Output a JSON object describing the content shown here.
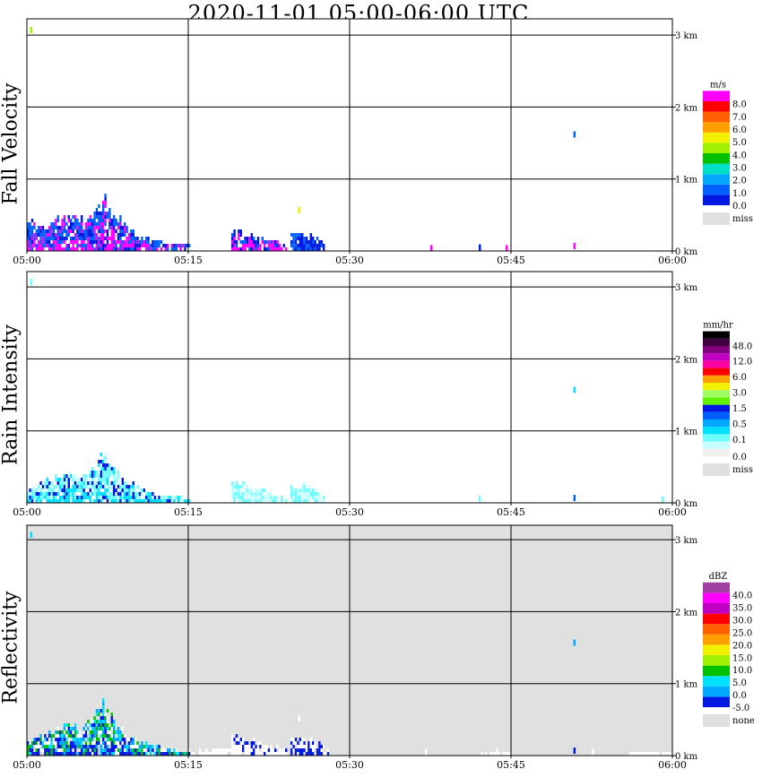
{
  "title": "2020-11-01   05:00-06:00 UTC",
  "time_ticks": [
    "05:00",
    "05:15",
    "05:30",
    "05:45",
    "06:00"
  ],
  "height_ticks": [
    "0 km",
    "1 km",
    "2 km",
    "3 km"
  ],
  "chart_data": [
    {
      "type": "heatmap",
      "ylabel": "Fall Velocity",
      "x_range_min": [
        0,
        60
      ],
      "y_range_km": [
        0,
        3.2
      ],
      "background": "#ffffff",
      "colorbar": {
        "unit": "m/s",
        "colors": [
          "#0018e0",
          "#0060ff",
          "#00a8ff",
          "#00e0c8",
          "#00c000",
          "#a0f000",
          "#f0f000",
          "#ffa000",
          "#ff6000",
          "#ff0000",
          "#ff00ff"
        ],
        "labels": [
          "0.0",
          "1.0",
          "2.0",
          "3.0",
          "4.0",
          "5.0",
          "6.0",
          "7.0",
          "8.0"
        ],
        "miss_label": "miss"
      },
      "echo_regions": [
        {
          "t": [
            0.0,
            15.0
          ],
          "profile": [
            [
              0,
              0.45
            ],
            [
              1,
              0.3
            ],
            [
              2,
              0.35
            ],
            [
              3,
              0.45
            ],
            [
              4,
              0.5
            ],
            [
              5,
              0.45
            ],
            [
              6,
              0.5
            ],
            [
              7,
              0.75
            ],
            [
              8,
              0.5
            ],
            [
              9,
              0.35
            ],
            [
              10,
              0.25
            ],
            [
              11,
              0.18
            ],
            [
              12,
              0.12
            ],
            [
              13,
              0.08
            ],
            [
              14,
              0.1
            ],
            [
              15,
              0.05
            ]
          ],
          "colors": [
            "#0018e0",
            "#0060ff",
            "#ff00ff",
            "#0060ff"
          ]
        },
        {
          "t": [
            19.0,
            24.0
          ],
          "profile": [
            [
              19,
              0.25
            ],
            [
              20,
              0.25
            ],
            [
              21,
              0.2
            ],
            [
              22,
              0.15
            ],
            [
              23,
              0.12
            ],
            [
              24,
              0.05
            ]
          ],
          "colors": [
            "#0018e0",
            "#0060ff",
            "#ff00ff"
          ]
        },
        {
          "t": [
            24.5,
            27.5
          ],
          "profile": [
            [
              24.5,
              0.2
            ],
            [
              25.5,
              0.25
            ],
            [
              26.5,
              0.18
            ],
            [
              27.5,
              0.1
            ]
          ],
          "colors": [
            "#0018e0",
            "#0060ff"
          ]
        }
      ],
      "specks": [
        {
          "t": 0.3,
          "h": 3.05,
          "c": "#a0f000"
        },
        {
          "t": 25.2,
          "h": 0.55,
          "c": "#f0f000"
        },
        {
          "t": 50.8,
          "h": 1.6,
          "c": "#0060ff"
        },
        {
          "t": 50.8,
          "h": 0.05,
          "c": "#ff00ff"
        },
        {
          "t": 42.0,
          "h": 0.03,
          "c": "#0018e0"
        },
        {
          "t": 37.5,
          "h": 0.02,
          "c": "#ff00ff"
        },
        {
          "t": 44.5,
          "h": 0.02,
          "c": "#ff00ff"
        }
      ]
    },
    {
      "type": "heatmap",
      "ylabel": "Rain Intensity",
      "x_range_min": [
        0,
        60
      ],
      "y_range_km": [
        0,
        3.2
      ],
      "background": "#ffffff",
      "colorbar": {
        "unit": "mm/hr",
        "colors": [
          "#f0f0f0",
          "#c8ffff",
          "#70ffff",
          "#00e0ff",
          "#00a8ff",
          "#0060ff",
          "#0018e0",
          "#60f000",
          "#a0ff60",
          "#f0f000",
          "#ffa000",
          "#ff0000",
          "#ff00a0",
          "#c000c0",
          "#800080",
          "#400040",
          "#000000"
        ],
        "labels": [
          "0.0",
          "0.1",
          "0.5",
          "1.5",
          "3.0",
          "6.0",
          "12.0",
          "48.0"
        ],
        "miss_label": "miss"
      },
      "echo_regions": [
        {
          "t": [
            0.0,
            15.0
          ],
          "profile": [
            [
              0,
              0.15
            ],
            [
              1,
              0.25
            ],
            [
              2,
              0.3
            ],
            [
              3,
              0.35
            ],
            [
              4,
              0.4
            ],
            [
              5,
              0.35
            ],
            [
              6,
              0.45
            ],
            [
              7,
              0.75
            ],
            [
              8,
              0.45
            ],
            [
              9,
              0.3
            ],
            [
              10,
              0.22
            ],
            [
              11,
              0.15
            ],
            [
              12,
              0.1
            ],
            [
              13,
              0.08
            ],
            [
              14,
              0.06
            ],
            [
              15,
              0.04
            ]
          ],
          "colors": [
            "#70ffff",
            "#c8ffff",
            "#00e0ff",
            "#70ffff",
            "#0018e0"
          ]
        },
        {
          "t": [
            19.0,
            24.0
          ],
          "profile": [
            [
              19,
              0.25
            ],
            [
              20,
              0.25
            ],
            [
              21,
              0.2
            ],
            [
              22,
              0.15
            ],
            [
              23,
              0.1
            ],
            [
              24,
              0.05
            ]
          ],
          "colors": [
            "#70ffff",
            "#c8ffff"
          ]
        },
        {
          "t": [
            24.5,
            27.5
          ],
          "profile": [
            [
              24.5,
              0.2
            ],
            [
              25.5,
              0.25
            ],
            [
              26.5,
              0.18
            ],
            [
              27.5,
              0.08
            ]
          ],
          "colors": [
            "#70ffff",
            "#c8ffff"
          ]
        }
      ],
      "specks": [
        {
          "t": 0.3,
          "h": 3.05,
          "c": "#70ffff"
        },
        {
          "t": 50.8,
          "h": 1.55,
          "c": "#00e0ff"
        },
        {
          "t": 50.8,
          "h": 0.05,
          "c": "#0060ff"
        },
        {
          "t": 42.0,
          "h": 0.04,
          "c": "#70ffff"
        },
        {
          "t": 59.0,
          "h": 0.03,
          "c": "#70ffff"
        }
      ]
    },
    {
      "type": "heatmap",
      "ylabel": "Reflectivity",
      "x_range_min": [
        0,
        60
      ],
      "y_range_km": [
        0,
        3.2
      ],
      "background": "#e0e0e0",
      "colorbar": {
        "unit": "dBZ",
        "colors": [
          "#0018e0",
          "#00a8ff",
          "#00e0ff",
          "#00c000",
          "#a0f000",
          "#f0f000",
          "#ffa000",
          "#ff6000",
          "#ff0000",
          "#c000c0",
          "#ff00ff",
          "#a040a0"
        ],
        "labels": [
          "-5.0",
          "0.0",
          "5.0",
          "10.0",
          "15.0",
          "20.0",
          "25.0",
          "30.0",
          "35.0",
          "40.0"
        ],
        "miss_label": "none"
      },
      "echo_regions": [
        {
          "t": [
            0.0,
            15.0
          ],
          "profile": [
            [
              0,
              0.15
            ],
            [
              1,
              0.25
            ],
            [
              2,
              0.3
            ],
            [
              3,
              0.4
            ],
            [
              4,
              0.45
            ],
            [
              5,
              0.35
            ],
            [
              6,
              0.5
            ],
            [
              7,
              0.75
            ],
            [
              8,
              0.45
            ],
            [
              9,
              0.3
            ],
            [
              10,
              0.22
            ],
            [
              11,
              0.15
            ],
            [
              12,
              0.12
            ],
            [
              13,
              0.08
            ],
            [
              14,
              0.06
            ],
            [
              15,
              0.04
            ]
          ],
          "colors": [
            "#ffffff",
            "#00a8ff",
            "#0018e0",
            "#00e0ff",
            "#00c000"
          ]
        },
        {
          "t": [
            15.0,
            19.0
          ],
          "profile": [
            [
              15,
              0.05
            ],
            [
              17,
              0.06
            ],
            [
              19,
              0.08
            ]
          ],
          "colors": [
            "#ffffff"
          ]
        },
        {
          "t": [
            19.0,
            24.0
          ],
          "profile": [
            [
              19,
              0.25
            ],
            [
              20,
              0.25
            ],
            [
              21,
              0.2
            ],
            [
              22,
              0.15
            ],
            [
              23,
              0.1
            ],
            [
              24,
              0.06
            ]
          ],
          "colors": [
            "#ffffff",
            "#0018e0",
            "#ffffff"
          ]
        },
        {
          "t": [
            24.5,
            28.0
          ],
          "profile": [
            [
              24.5,
              0.2
            ],
            [
              25.5,
              0.25
            ],
            [
              26.5,
              0.2
            ],
            [
              27.5,
              0.12
            ],
            [
              28,
              0.05
            ]
          ],
          "colors": [
            "#ffffff",
            "#ffffff",
            "#0018e0"
          ]
        },
        {
          "t": [
            56.0,
            60.0
          ],
          "profile": [
            [
              56,
              0.03
            ],
            [
              58,
              0.03
            ],
            [
              60,
              0.03
            ]
          ],
          "colors": [
            "#ffffff"
          ]
        },
        {
          "t": [
            42.0,
            45.0
          ],
          "profile": [
            [
              42,
              0.03
            ],
            [
              43.5,
              0.06
            ],
            [
              45,
              0.03
            ]
          ],
          "colors": [
            "#ffffff"
          ]
        }
      ],
      "specks": [
        {
          "t": 0.3,
          "h": 3.05,
          "c": "#00e0ff"
        },
        {
          "t": 50.8,
          "h": 1.55,
          "c": "#00a8ff"
        },
        {
          "t": 50.8,
          "h": 0.05,
          "c": "#0018e0"
        },
        {
          "t": 25.2,
          "h": 0.5,
          "c": "#ffffff"
        },
        {
          "t": 37.0,
          "h": 0.03,
          "c": "#ffffff"
        },
        {
          "t": 52.5,
          "h": 0.03,
          "c": "#ffffff"
        }
      ]
    }
  ]
}
